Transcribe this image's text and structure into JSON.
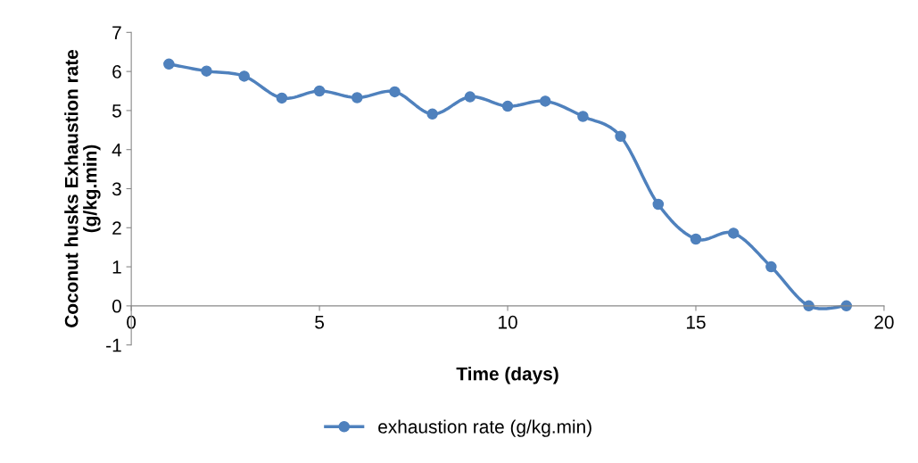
{
  "chart_data": {
    "type": "line",
    "xlabel": "Time (days)",
    "ylabel": "Coconut husks Exhaustion rate\n(g/kg.min)",
    "x": [
      1,
      2,
      3,
      4,
      5,
      6,
      7,
      8,
      9,
      10,
      11,
      12,
      13,
      14,
      15,
      16,
      17,
      18,
      19
    ],
    "series": [
      {
        "name": "exhaustion rate (g/kg.min)",
        "color": "#4f81bd",
        "values": [
          6.19,
          6.01,
          5.88,
          5.32,
          5.5,
          5.33,
          5.48,
          4.91,
          5.35,
          5.11,
          5.24,
          4.85,
          4.34,
          2.6,
          1.71,
          1.86,
          1.0,
          0,
          0
        ]
      }
    ],
    "xlim": [
      0,
      20
    ],
    "xticks": [
      0,
      5,
      10,
      15,
      20
    ],
    "ylim": [
      -1,
      7
    ],
    "yticks": [
      -1,
      0,
      1,
      2,
      3,
      4,
      5,
      6,
      7
    ],
    "grid": false,
    "legend": "bottom",
    "marker": "circle",
    "line_style": "solid"
  }
}
